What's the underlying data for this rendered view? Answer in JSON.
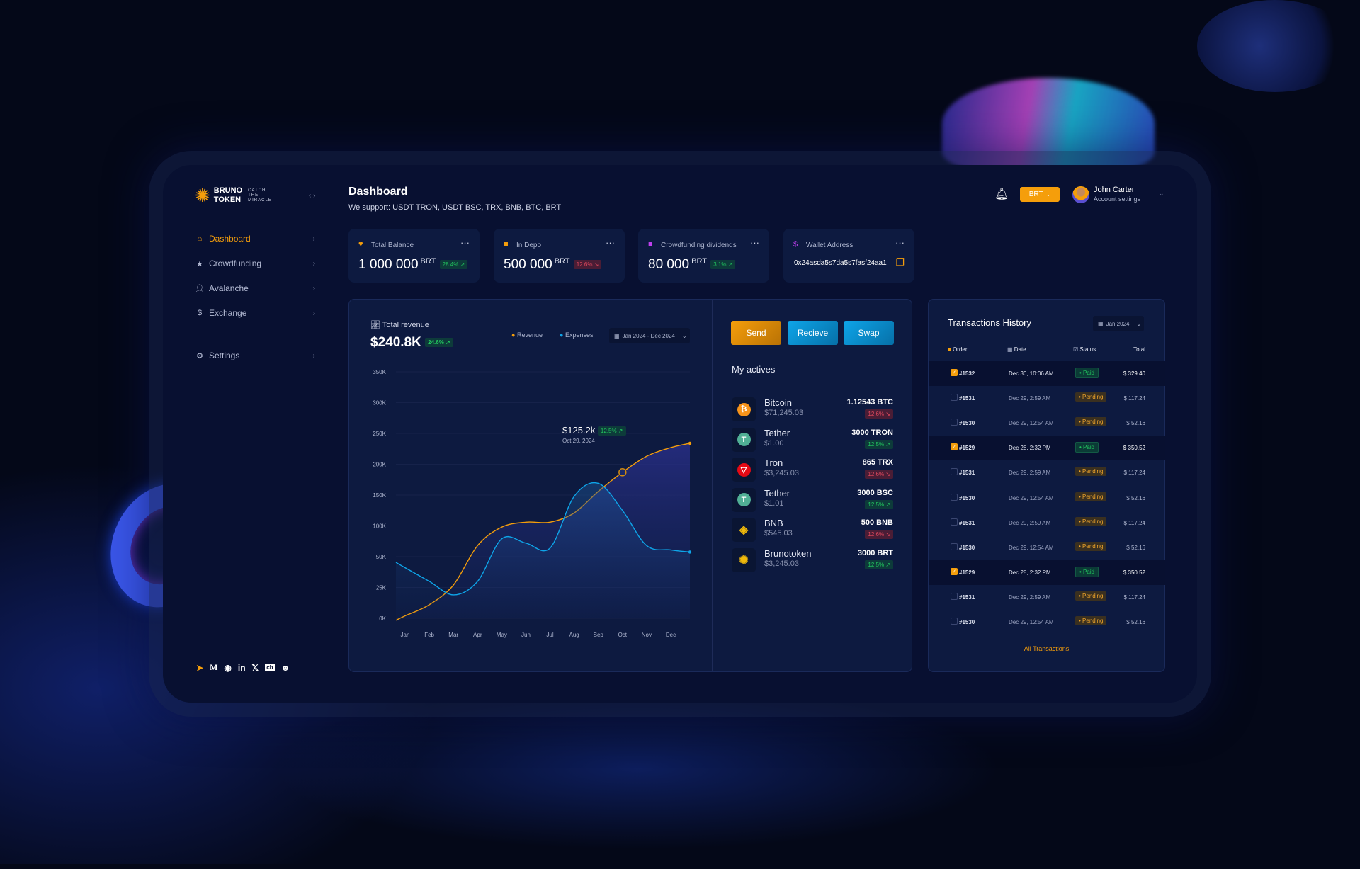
{
  "brand": {
    "name_line1": "BRUNO",
    "name_line2": "TOKEN",
    "tagline": [
      "CATCH",
      "THE",
      "MIRACLE"
    ]
  },
  "header": {
    "title": "Dashboard",
    "subtitle": "We support: USDT TRON, USDT BSC, TRX, BNB, BTC, BRT",
    "currency": "BRT",
    "user_name": "John Carter",
    "user_sub": "Account settings"
  },
  "sidebar": {
    "items": [
      {
        "label": "Dashboard",
        "icon": "home-icon",
        "active": true
      },
      {
        "label": "Crowdfunding",
        "icon": "star-icon"
      },
      {
        "label": "Avalanche",
        "icon": "user-icon"
      },
      {
        "label": "Exchange",
        "icon": "dollar-icon"
      }
    ],
    "settings": "Settings",
    "socials": [
      "telegram-icon",
      "medium-icon",
      "reddit-icon",
      "linkedin-icon",
      "x-icon",
      "coinbase-icon",
      "discord-icon"
    ]
  },
  "stats": [
    {
      "label": "Total Balance",
      "value": "1 000 000",
      "unit": "BRT",
      "change": "28.4% ↗",
      "trend": "up",
      "icon": "heart-icon",
      "color": "#f59e0b"
    },
    {
      "label": "In Depo",
      "value": "500 000",
      "unit": "BRT",
      "change": "12.6% ↘",
      "trend": "down",
      "icon": "bag-icon",
      "color": "#f59e0b"
    },
    {
      "label": "Crowdfunding dividends",
      "value": "80 000",
      "unit": "BRT",
      "change": "3.1% ↗",
      "trend": "up",
      "icon": "bag-icon",
      "color": "#c040f0"
    },
    {
      "label": "Wallet Address",
      "address": "0x24asda5s7da5s7fasf24aa1",
      "icon": "dollar-icon",
      "color": "#c040f0"
    }
  ],
  "revenue": {
    "title": "Total revenue",
    "total": "$240.8K",
    "change": "24.6% ↗",
    "legend_revenue": "Revenue",
    "legend_expenses": "Expenses",
    "range": "Jan 2024 - Dec 2024",
    "tooltip": {
      "value": "$125.2k",
      "change": "12.5% ↗",
      "date": "Oct 29, 2024"
    }
  },
  "chart_data": {
    "type": "line",
    "x": [
      "Jan",
      "Feb",
      "Mar",
      "Apr",
      "May",
      "Jun",
      "Jul",
      "Aug",
      "Sep",
      "Oct",
      "Nov",
      "Dec"
    ],
    "yticks": [
      "0K",
      "25K",
      "50K",
      "100K",
      "150K",
      "200K",
      "250K",
      "300K",
      "350K"
    ],
    "ytick_values": [
      0,
      25,
      50,
      100,
      150,
      200,
      250,
      300,
      350
    ],
    "ylim": [
      0,
      350
    ],
    "y_unit": "K",
    "series": [
      {
        "name": "Revenue",
        "color": "#f59e0b",
        "values": [
          2,
          11,
          27,
          68,
          98,
          106,
          106,
          121,
          156,
          187,
          213,
          227
        ]
      },
      {
        "name": "Expenses",
        "color": "#0ea5e9",
        "values": [
          41,
          30,
          19,
          30,
          79,
          72,
          64,
          148,
          169,
          125,
          68,
          61
        ]
      }
    ],
    "grid": true,
    "legend": "top-right"
  },
  "actions": {
    "send": "Send",
    "receive": "Recieve",
    "swap": "Swap"
  },
  "actives": {
    "title": "My actives",
    "items": [
      {
        "name": "Bitcoin",
        "price": "$71,245.03",
        "amount": "1.12543 BTC",
        "change": "12.6% ↘",
        "trend": "down",
        "icon": "bitcoin-icon"
      },
      {
        "name": "Tether",
        "price": "$1.00",
        "amount": "3000 TRON",
        "change": "12.5% ↗",
        "trend": "up",
        "icon": "tether-icon"
      },
      {
        "name": "Tron",
        "price": "$3,245.03",
        "amount": "865 TRX",
        "change": "12.6% ↘",
        "trend": "down",
        "icon": "tron-icon"
      },
      {
        "name": "Tether",
        "price": "$1.01",
        "amount": "3000 BSC",
        "change": "12.5% ↗",
        "trend": "up",
        "icon": "tether-icon"
      },
      {
        "name": "BNB",
        "price": "$545.03",
        "amount": "500 BNB",
        "change": "12.6% ↘",
        "trend": "down",
        "icon": "bnb-icon"
      },
      {
        "name": "Brunotoken",
        "price": "$3,245.03",
        "amount": "3000 BRT",
        "change": "12.5% ↗",
        "trend": "up",
        "icon": "brunotoken-icon"
      }
    ]
  },
  "transactions": {
    "title": "Transactions History",
    "filter": "Jan 2024",
    "columns": [
      "Order",
      "Date",
      "Status",
      "Total"
    ],
    "link": "All Transactions",
    "rows": [
      {
        "order": "#1532",
        "date": "Dec 30, 10:06 AM",
        "status": "Paid",
        "total": "$ 329.40",
        "checked": true
      },
      {
        "order": "#1531",
        "date": "Dec 29, 2:59 AM",
        "status": "Pending",
        "total": "$ 117.24",
        "checked": false
      },
      {
        "order": "#1530",
        "date": "Dec 29, 12:54 AM",
        "status": "Pending",
        "total": "$ 52.16",
        "checked": false
      },
      {
        "order": "#1529",
        "date": "Dec 28, 2:32 PM",
        "status": "Paid",
        "total": "$ 350.52",
        "checked": true
      },
      {
        "order": "#1531",
        "date": "Dec 29, 2:59 AM",
        "status": "Pending",
        "total": "$ 117.24",
        "checked": false
      },
      {
        "order": "#1530",
        "date": "Dec 29, 12:54 AM",
        "status": "Pending",
        "total": "$ 52.16",
        "checked": false
      },
      {
        "order": "#1531",
        "date": "Dec 29, 2:59 AM",
        "status": "Pending",
        "total": "$ 117.24",
        "checked": false
      },
      {
        "order": "#1530",
        "date": "Dec 29, 12:54 AM",
        "status": "Pending",
        "total": "$ 52.16",
        "checked": false
      },
      {
        "order": "#1529",
        "date": "Dec 28, 2:32 PM",
        "status": "Paid",
        "total": "$ 350.52",
        "checked": true
      },
      {
        "order": "#1531",
        "date": "Dec 29, 2:59 AM",
        "status": "Pending",
        "total": "$ 117.24",
        "checked": false
      },
      {
        "order": "#1530",
        "date": "Dec 29, 12:54 AM",
        "status": "Pending",
        "total": "$ 52.16",
        "checked": false
      }
    ]
  }
}
